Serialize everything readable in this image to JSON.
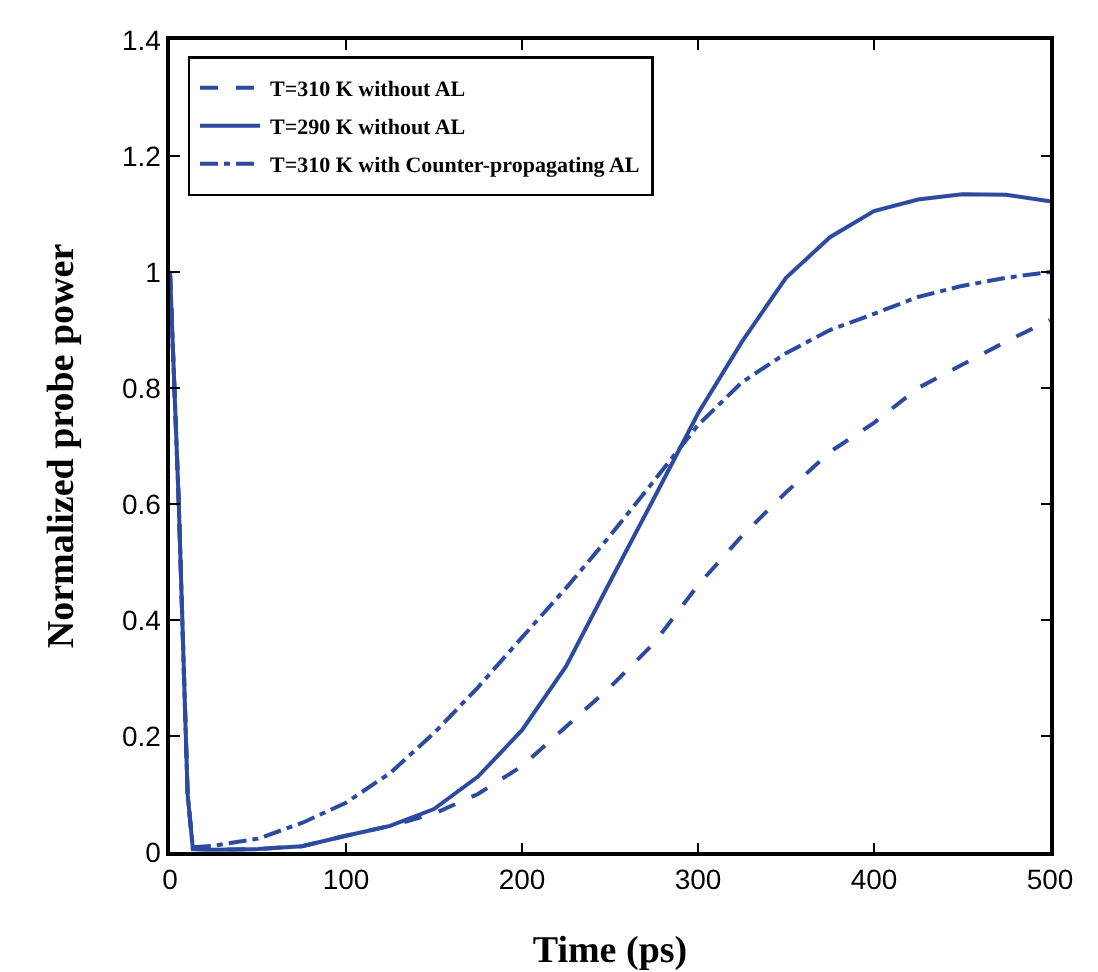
{
  "chart_data": {
    "type": "line",
    "xlabel": "Time (ps)",
    "ylabel": "Normalized probe power",
    "xlim": [
      0,
      500
    ],
    "xticks": [
      0,
      100,
      200,
      300,
      400,
      500
    ],
    "ylim": [
      0,
      1.4
    ],
    "yticks": [
      0,
      0.2,
      0.4,
      0.6,
      0.8,
      1,
      1.2,
      1.4
    ],
    "grid": false,
    "legend": "top left",
    "marker": "none",
    "series": [
      {
        "name": "T=310 K without AL",
        "color": "#2b4aa0",
        "line_style": "dashed",
        "x": [
          0,
          5,
          10,
          13,
          25,
          50,
          75,
          100,
          125,
          150,
          175,
          200,
          225,
          250,
          275,
          300,
          325,
          350,
          375,
          400,
          425,
          450,
          475,
          500
        ],
        "values": [
          1,
          0.6,
          0.1,
          0.005,
          0.004,
          0.005,
          0.01,
          0.028,
          0.045,
          0.066,
          0.1,
          0.148,
          0.216,
          0.284,
          0.36,
          0.46,
          0.545,
          0.62,
          0.69,
          0.74,
          0.8,
          0.84,
          0.88,
          0.917
        ]
      },
      {
        "name": "T=290 K without AL",
        "color": "#2b4aa0",
        "line_style": "solid",
        "x": [
          0,
          5,
          10,
          13,
          25,
          50,
          75,
          100,
          125,
          150,
          175,
          200,
          225,
          250,
          275,
          300,
          325,
          350,
          375,
          400,
          425,
          450,
          475,
          500
        ],
        "values": [
          1,
          0.6,
          0.1,
          0.005,
          0.004,
          0.005,
          0.01,
          0.028,
          0.045,
          0.074,
          0.13,
          0.21,
          0.32,
          0.466,
          0.61,
          0.756,
          0.88,
          0.99,
          1.06,
          1.105,
          1.125,
          1.134,
          1.133,
          1.122
        ]
      },
      {
        "name": "T=310 K with Counter-propagating AL",
        "color": "#2b4aa0",
        "line_style": "dashdot",
        "x": [
          0,
          5,
          10,
          13,
          25,
          50,
          75,
          100,
          125,
          150,
          175,
          200,
          225,
          250,
          275,
          300,
          325,
          350,
          375,
          400,
          425,
          450,
          475,
          500
        ],
        "values": [
          1,
          0.6,
          0.1,
          0.008,
          0.011,
          0.023,
          0.05,
          0.085,
          0.136,
          0.205,
          0.284,
          0.37,
          0.455,
          0.545,
          0.64,
          0.736,
          0.81,
          0.86,
          0.9,
          0.928,
          0.957,
          0.976,
          0.99,
          1
        ]
      }
    ]
  }
}
